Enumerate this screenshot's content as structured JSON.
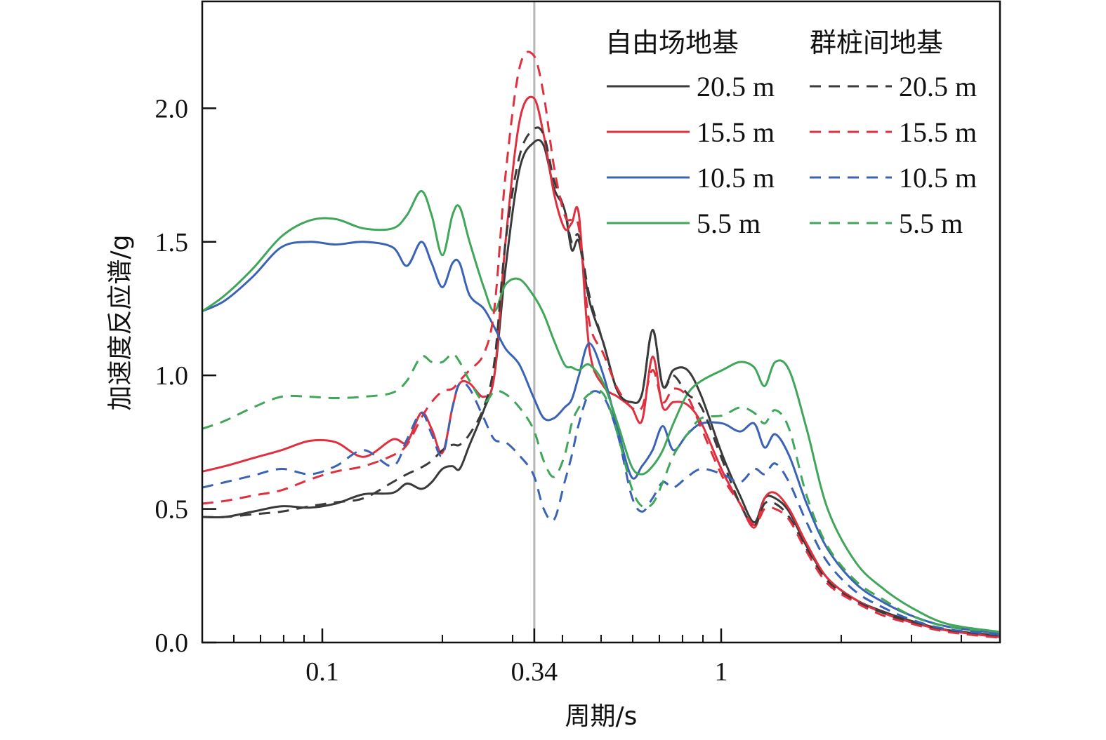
{
  "chart_data": {
    "type": "line",
    "title": "",
    "xlabel": "周期/s",
    "ylabel": "加速度反应谱/g",
    "xscale": "log",
    "xlim": [
      0.05,
      5
    ],
    "ylim": [
      0,
      2.4
    ],
    "x_ticks": [
      0.1,
      0.34,
      1
    ],
    "x_tick_labels": [
      "0.1",
      "0.34",
      "1"
    ],
    "x_minor_ticks": [
      0.06,
      0.07,
      0.08,
      0.09,
      0.2,
      0.3,
      0.4,
      0.5,
      0.6,
      0.7,
      0.8,
      0.9,
      2,
      3,
      4
    ],
    "y_ticks": [
      0,
      0.5,
      1.0,
      1.5,
      2.0
    ],
    "y_tick_labels": [
      "0.0",
      "0.5",
      "1.0",
      "1.5",
      "2.0"
    ],
    "reference_line": 0.34,
    "grid": false,
    "legend_placement": "top-right",
    "legend_headers": [
      "自由场地基",
      "群桩间地基"
    ],
    "x": [
      0.05,
      0.057,
      0.067,
      0.079,
      0.093,
      0.108,
      0.127,
      0.15,
      0.163,
      0.177,
      0.188,
      0.2,
      0.212,
      0.221,
      0.234,
      0.254,
      0.27,
      0.288,
      0.312,
      0.338,
      0.359,
      0.381,
      0.405,
      0.422,
      0.44,
      0.467,
      0.507,
      0.55,
      0.596,
      0.633,
      0.673,
      0.714,
      0.759,
      0.823,
      0.893,
      1.008,
      1.115,
      1.21,
      1.285,
      1.366,
      1.48,
      1.638,
      1.849,
      2.175,
      2.556,
      3.005,
      3.68,
      4.97
    ],
    "series": [
      {
        "name": "20.5 m",
        "group": "自由场地基",
        "style": "solid",
        "color": "#3a3a3a",
        "values": [
          0.47,
          0.47,
          0.49,
          0.51,
          0.505,
          0.52,
          0.555,
          0.56,
          0.595,
          0.575,
          0.6,
          0.65,
          0.66,
          0.65,
          0.74,
          0.87,
          1.0,
          1.4,
          1.77,
          1.87,
          1.86,
          1.7,
          1.62,
          1.47,
          1.5,
          1.28,
          1.12,
          0.94,
          0.9,
          0.93,
          1.17,
          0.96,
          1.02,
          1.02,
          0.92,
          0.7,
          0.55,
          0.45,
          0.54,
          0.54,
          0.49,
          0.36,
          0.24,
          0.16,
          0.115,
          0.08,
          0.047,
          0.026
        ]
      },
      {
        "name": "15.5 m",
        "group": "自由场地基",
        "style": "solid",
        "color": "#e0303f",
        "values": [
          0.64,
          0.66,
          0.69,
          0.72,
          0.755,
          0.75,
          0.695,
          0.76,
          0.75,
          0.86,
          0.8,
          0.71,
          0.88,
          0.97,
          0.97,
          0.92,
          1.0,
          1.5,
          1.95,
          2.04,
          1.9,
          1.68,
          1.55,
          1.57,
          1.6,
          1.1,
          0.96,
          0.92,
          0.88,
          0.83,
          1.07,
          0.88,
          0.9,
          0.89,
          0.82,
          0.64,
          0.52,
          0.43,
          0.54,
          0.56,
          0.5,
          0.37,
          0.24,
          0.16,
          0.11,
          0.075,
          0.045,
          0.02
        ]
      },
      {
        "name": "10.5 m",
        "group": "自由场地基",
        "style": "solid",
        "color": "#3a62b5",
        "values": [
          1.24,
          1.28,
          1.37,
          1.48,
          1.5,
          1.49,
          1.5,
          1.48,
          1.41,
          1.5,
          1.42,
          1.33,
          1.42,
          1.42,
          1.3,
          1.25,
          1.18,
          1.1,
          1.04,
          0.92,
          0.84,
          0.84,
          0.88,
          0.91,
          1.0,
          1.12,
          1.0,
          0.8,
          0.62,
          0.66,
          0.72,
          0.81,
          0.72,
          0.78,
          0.82,
          0.82,
          0.79,
          0.82,
          0.73,
          0.78,
          0.7,
          0.52,
          0.35,
          0.22,
          0.15,
          0.1,
          0.06,
          0.035
        ]
      },
      {
        "name": "5.5 m",
        "group": "自由场地基",
        "style": "solid",
        "color": "#3fa65a",
        "values": [
          1.24,
          1.3,
          1.4,
          1.52,
          1.58,
          1.585,
          1.55,
          1.55,
          1.6,
          1.69,
          1.6,
          1.45,
          1.6,
          1.63,
          1.5,
          1.33,
          1.24,
          1.34,
          1.36,
          1.3,
          1.23,
          1.13,
          1.04,
          1.03,
          1.02,
          1.04,
          0.97,
          0.82,
          0.66,
          0.63,
          0.66,
          0.72,
          0.82,
          0.93,
          0.98,
          1.02,
          1.05,
          1.03,
          0.96,
          1.05,
          1.02,
          0.8,
          0.5,
          0.3,
          0.2,
          0.13,
          0.07,
          0.04
        ]
      },
      {
        "name": "20.5 m",
        "group": "群桩间地基",
        "style": "dashed",
        "color": "#3a3a3a",
        "values": [
          0.47,
          0.47,
          0.48,
          0.49,
          0.51,
          0.525,
          0.54,
          0.6,
          0.63,
          0.655,
          0.68,
          0.72,
          0.74,
          0.74,
          0.78,
          0.88,
          1.05,
          1.5,
          1.82,
          1.92,
          1.9,
          1.73,
          1.62,
          1.5,
          1.52,
          1.3,
          1.12,
          0.94,
          0.9,
          0.93,
          1.17,
          0.96,
          1.0,
          0.93,
          0.88,
          0.68,
          0.52,
          0.44,
          0.52,
          0.52,
          0.47,
          0.35,
          0.23,
          0.155,
          0.11,
          0.075,
          0.045,
          0.024
        ]
      },
      {
        "name": "15.5 m",
        "group": "群桩间地基",
        "style": "dashed",
        "color": "#e0303f",
        "values": [
          0.52,
          0.53,
          0.55,
          0.57,
          0.61,
          0.64,
          0.66,
          0.7,
          0.74,
          0.84,
          0.9,
          0.94,
          0.95,
          0.98,
          1.02,
          1.08,
          1.25,
          1.75,
          2.15,
          2.2,
          2.05,
          1.78,
          1.6,
          1.58,
          1.55,
          1.2,
          1.08,
          0.95,
          0.88,
          0.88,
          1.02,
          0.9,
          0.95,
          0.92,
          0.8,
          0.62,
          0.52,
          0.44,
          0.5,
          0.5,
          0.46,
          0.34,
          0.22,
          0.15,
          0.1,
          0.07,
          0.04,
          0.018
        ]
      },
      {
        "name": "10.5 m",
        "group": "群桩间地基",
        "style": "dashed",
        "color": "#3a62b5",
        "values": [
          0.58,
          0.6,
          0.625,
          0.65,
          0.63,
          0.66,
          0.72,
          0.66,
          0.76,
          0.86,
          0.78,
          0.7,
          0.88,
          0.97,
          0.95,
          0.84,
          0.76,
          0.75,
          0.7,
          0.63,
          0.5,
          0.46,
          0.6,
          0.7,
          0.82,
          0.93,
          0.92,
          0.78,
          0.55,
          0.49,
          0.54,
          0.6,
          0.58,
          0.62,
          0.65,
          0.63,
          0.6,
          0.65,
          0.63,
          0.67,
          0.6,
          0.45,
          0.3,
          0.19,
          0.13,
          0.085,
          0.05,
          0.03
        ]
      },
      {
        "name": "5.5 m",
        "group": "群桩间地基",
        "style": "dashed",
        "color": "#3fa65a",
        "values": [
          0.8,
          0.83,
          0.88,
          0.92,
          0.92,
          0.915,
          0.92,
          0.935,
          0.98,
          1.07,
          1.05,
          1.05,
          1.08,
          1.05,
          0.98,
          0.9,
          0.94,
          0.93,
          0.88,
          0.8,
          0.68,
          0.62,
          0.7,
          0.82,
          0.88,
          0.93,
          0.93,
          0.78,
          0.58,
          0.51,
          0.52,
          0.6,
          0.7,
          0.78,
          0.84,
          0.85,
          0.88,
          0.86,
          0.82,
          0.87,
          0.8,
          0.55,
          0.36,
          0.23,
          0.16,
          0.1,
          0.06,
          0.04
        ]
      }
    ]
  }
}
